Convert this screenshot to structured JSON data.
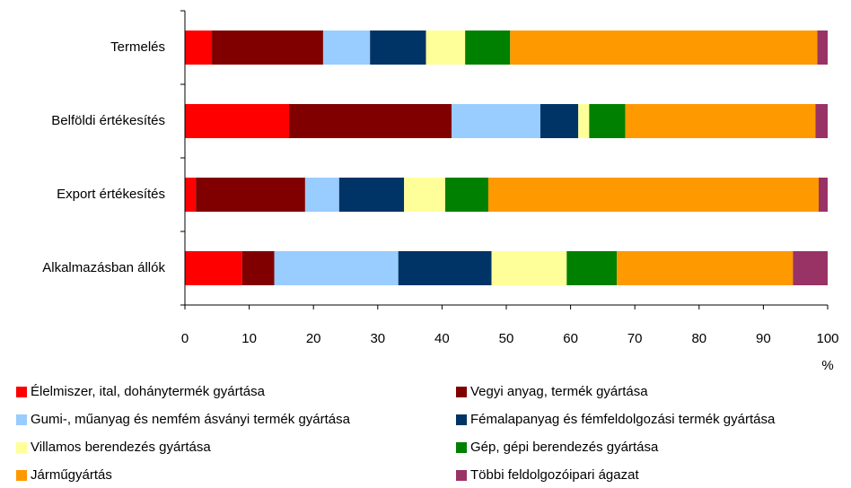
{
  "chart_data": {
    "type": "bar",
    "orientation": "horizontal",
    "stacked": true,
    "categories": [
      "Termelés",
      "Belföldi értékesítés",
      "Export értékesítés",
      "Alkalmazásban állók"
    ],
    "series": [
      {
        "name": "Élelmiszer, ital, dohánytermék gyártása",
        "color": "#ff0000",
        "values": [
          4.2,
          16.2,
          1.7,
          8.9
        ]
      },
      {
        "name": "Vegyi anyag, termék gyártása",
        "color": "#800000",
        "values": [
          17.3,
          25.3,
          17.0,
          5.0
        ]
      },
      {
        "name": "Gumi-, műanyag és nemfém ásványi termék gyártása",
        "color": "#99ccff",
        "values": [
          7.3,
          13.8,
          5.3,
          19.3
        ]
      },
      {
        "name": "Fémalapanyag és fémfeldolgozási termék gyártása",
        "color": "#003366",
        "values": [
          8.7,
          5.9,
          10.1,
          14.5
        ]
      },
      {
        "name": "Villamos berendezés gyártása",
        "color": "#ffff99",
        "values": [
          6.1,
          1.7,
          6.4,
          11.7
        ]
      },
      {
        "name": "Gép, gépi berendezés gyártása",
        "color": "#008000",
        "values": [
          7.0,
          5.6,
          6.7,
          7.8
        ]
      },
      {
        "name": "Járműgyártás",
        "color": "#ff9900",
        "values": [
          47.8,
          29.6,
          51.4,
          27.4
        ]
      },
      {
        "name": "Többi feldolgozóipari ágazat",
        "color": "#993366",
        "values": [
          1.6,
          1.9,
          1.4,
          5.4
        ]
      }
    ],
    "xlabel": "%",
    "xlim": [
      0,
      100
    ],
    "xticks": [
      0,
      10,
      20,
      30,
      40,
      50,
      60,
      70,
      80,
      90,
      100
    ]
  }
}
